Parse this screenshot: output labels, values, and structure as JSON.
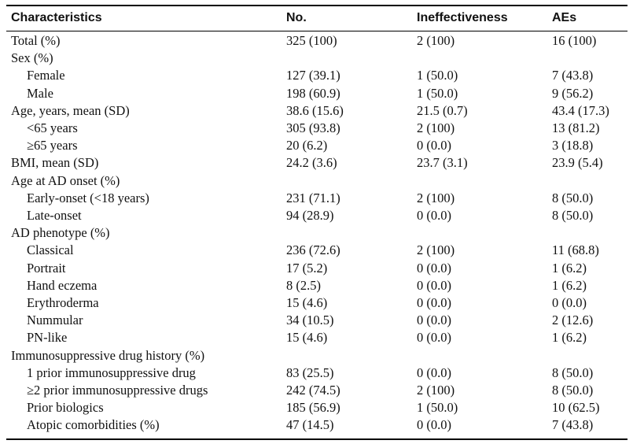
{
  "table": {
    "headers": [
      "Characteristics",
      "No.",
      "Ineffectiveness",
      "AEs"
    ],
    "rows": [
      {
        "label": "Total (%)",
        "indent": false,
        "no": "325 (100)",
        "ineff": "2 (100)",
        "aes": "16 (100)"
      },
      {
        "label": "Sex (%)",
        "indent": false,
        "no": "",
        "ineff": "",
        "aes": ""
      },
      {
        "label": "Female",
        "indent": true,
        "no": "127 (39.1)",
        "ineff": "1 (50.0)",
        "aes": "7 (43.8)"
      },
      {
        "label": "Male",
        "indent": true,
        "no": "198 (60.9)",
        "ineff": "1 (50.0)",
        "aes": "9 (56.2)"
      },
      {
        "label": "Age, years, mean (SD)",
        "indent": false,
        "no": "38.6 (15.6)",
        "ineff": "21.5 (0.7)",
        "aes": "43.4 (17.3)"
      },
      {
        "label": "<65 years",
        "indent": true,
        "no": "305 (93.8)",
        "ineff": "2 (100)",
        "aes": "13 (81.2)"
      },
      {
        "label": "≥65 years",
        "indent": true,
        "no": "20 (6.2)",
        "ineff": "0 (0.0)",
        "aes": "3 (18.8)"
      },
      {
        "label": "BMI, mean (SD)",
        "indent": false,
        "no": "24.2 (3.6)",
        "ineff": "23.7 (3.1)",
        "aes": "23.9 (5.4)"
      },
      {
        "label": "Age at AD onset (%)",
        "indent": false,
        "no": "",
        "ineff": "",
        "aes": ""
      },
      {
        "label": "Early-onset (<18 years)",
        "indent": true,
        "no": "231 (71.1)",
        "ineff": "2 (100)",
        "aes": "8 (50.0)"
      },
      {
        "label": "Late-onset",
        "indent": true,
        "no": "94 (28.9)",
        "ineff": "0 (0.0)",
        "aes": "8 (50.0)"
      },
      {
        "label": "AD phenotype (%)",
        "indent": false,
        "no": "",
        "ineff": "",
        "aes": ""
      },
      {
        "label": "Classical",
        "indent": true,
        "no": "236 (72.6)",
        "ineff": "2 (100)",
        "aes": "11 (68.8)"
      },
      {
        "label": "Portrait",
        "indent": true,
        "no": "17 (5.2)",
        "ineff": "0 (0.0)",
        "aes": "1 (6.2)"
      },
      {
        "label": "Hand eczema",
        "indent": true,
        "no": "8 (2.5)",
        "ineff": "0 (0.0)",
        "aes": "1 (6.2)"
      },
      {
        "label": "Erythroderma",
        "indent": true,
        "no": "15 (4.6)",
        "ineff": "0 (0.0)",
        "aes": "0 (0.0)"
      },
      {
        "label": "Nummular",
        "indent": true,
        "no": "34 (10.5)",
        "ineff": "0 (0.0)",
        "aes": "2 (12.6)"
      },
      {
        "label": "PN-like",
        "indent": true,
        "no": "15 (4.6)",
        "ineff": "0 (0.0)",
        "aes": "1 (6.2)"
      },
      {
        "label": "Immunosuppressive drug history (%)",
        "indent": false,
        "no": "",
        "ineff": "",
        "aes": ""
      },
      {
        "label": "1 prior immunosuppressive drug",
        "indent": true,
        "no": "83 (25.5)",
        "ineff": "0 (0.0)",
        "aes": "8 (50.0)"
      },
      {
        "label": "≥2 prior immunosuppressive drugs",
        "indent": true,
        "no": "242 (74.5)",
        "ineff": "2 (100)",
        "aes": "8 (50.0)"
      },
      {
        "label": "Prior biologics",
        "indent": true,
        "no": "185 (56.9)",
        "ineff": "1 (50.0)",
        "aes": "10 (62.5)"
      },
      {
        "label": "Atopic comorbidities (%)",
        "indent": true,
        "no": "47 (14.5)",
        "ineff": "0 (0.0)",
        "aes": "7 (43.8)"
      }
    ]
  }
}
